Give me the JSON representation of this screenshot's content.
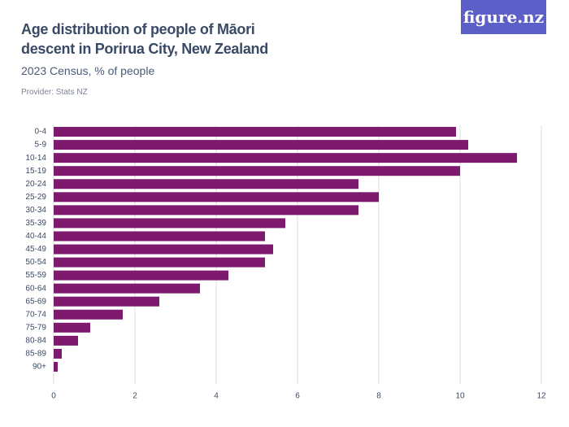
{
  "chart_data": {
    "type": "hbar",
    "title": "Age distribution of people of Māori descent in Porirua City, New Zealand",
    "subtitle": "2023 Census, % of people",
    "provider": "Provider: Stats NZ",
    "logo": "figure.nz",
    "categories": [
      "0-4",
      "5-9",
      "10-14",
      "15-19",
      "20-24",
      "25-29",
      "30-34",
      "35-39",
      "40-44",
      "45-49",
      "50-54",
      "55-59",
      "60-64",
      "65-69",
      "70-74",
      "75-79",
      "80-84",
      "85-89",
      "90+"
    ],
    "values": [
      9.9,
      10.2,
      11.4,
      10.0,
      7.5,
      8.0,
      7.5,
      5.7,
      5.2,
      5.4,
      5.2,
      4.3,
      3.6,
      2.6,
      1.7,
      0.9,
      0.6,
      0.2,
      0.1
    ],
    "color": "#7d1a6e",
    "xlim": [
      0,
      12
    ],
    "xticks": [
      0,
      2,
      4,
      6,
      8,
      10,
      12
    ],
    "grid": true
  }
}
